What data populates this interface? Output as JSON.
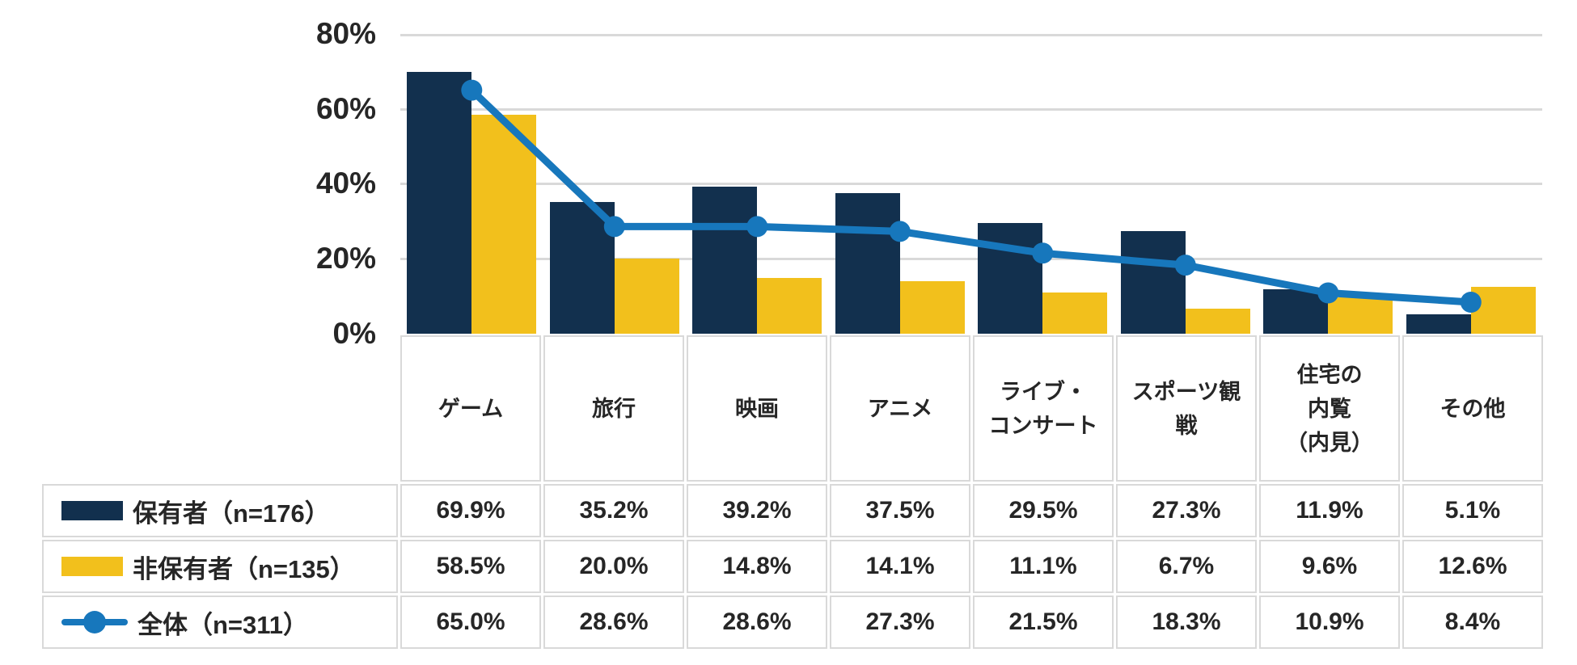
{
  "chart_data": {
    "type": "bar",
    "subtype": "grouped-bars-with-line-overlay",
    "categories": [
      "ゲーム",
      "旅行",
      "映画",
      "アニメ",
      "ライブ・コンサート",
      "スポーツ観戦",
      "住宅の内覧（内見）",
      "その他"
    ],
    "series": [
      {
        "key": "owner",
        "name": "保有者（n=176）",
        "type": "bar",
        "color": "#12304E",
        "values": [
          69.9,
          35.2,
          39.2,
          37.5,
          29.5,
          27.3,
          11.9,
          5.1
        ]
      },
      {
        "key": "nonowner",
        "name": "非保有者（n=135）",
        "type": "bar",
        "color": "#F2C01C",
        "values": [
          58.5,
          20.0,
          14.8,
          14.1,
          11.1,
          6.7,
          9.6,
          12.6
        ]
      },
      {
        "key": "overall",
        "name": "全体（n=311）",
        "type": "line",
        "color": "#1777BC",
        "values": [
          65.0,
          28.6,
          28.6,
          27.3,
          21.5,
          18.3,
          10.9,
          8.4
        ]
      }
    ],
    "title": "",
    "xlabel": "",
    "ylabel": "",
    "ylim": [
      0,
      80
    ],
    "ytick_labels": [
      "0%",
      "20%",
      "40%",
      "60%",
      "80%"
    ],
    "grid": true,
    "gridline_color": "#d9d9d9",
    "legend_position": "left column of data table below chart"
  },
  "axis": {
    "ticks": [
      "80%",
      "60%",
      "40%",
      "20%",
      "0%"
    ]
  },
  "table": {
    "headers": [
      "ゲーム",
      "旅行",
      "映画",
      "アニメ",
      "ライブ・\nコンサート",
      "スポーツ観\n戦",
      "住宅の\n内覧\n（内見）",
      "その他"
    ],
    "rows": [
      {
        "legend": "保有者（n=176）",
        "swatch": "navy-bar-swatch",
        "values": [
          "69.9%",
          "35.2%",
          "39.2%",
          "37.5%",
          "29.5%",
          "27.3%",
          "11.9%",
          "5.1%"
        ]
      },
      {
        "legend": "非保有者（n=135）",
        "swatch": "yellow-bar-swatch",
        "values": [
          "58.5%",
          "20.0%",
          "14.8%",
          "14.1%",
          "11.1%",
          "6.7%",
          "9.6%",
          "12.6%"
        ]
      },
      {
        "legend": "全体（n=311）",
        "swatch": "blue-line-swatch",
        "values": [
          "65.0%",
          "28.6%",
          "28.6%",
          "27.3%",
          "21.5%",
          "18.3%",
          "10.9%",
          "8.4%"
        ]
      }
    ]
  },
  "colors": {
    "navy": "#12304E",
    "yellow": "#F2C01C",
    "blue": "#1777BC",
    "grid": "#d9d9d9",
    "border": "#d9d9d9",
    "text": "#262626"
  }
}
